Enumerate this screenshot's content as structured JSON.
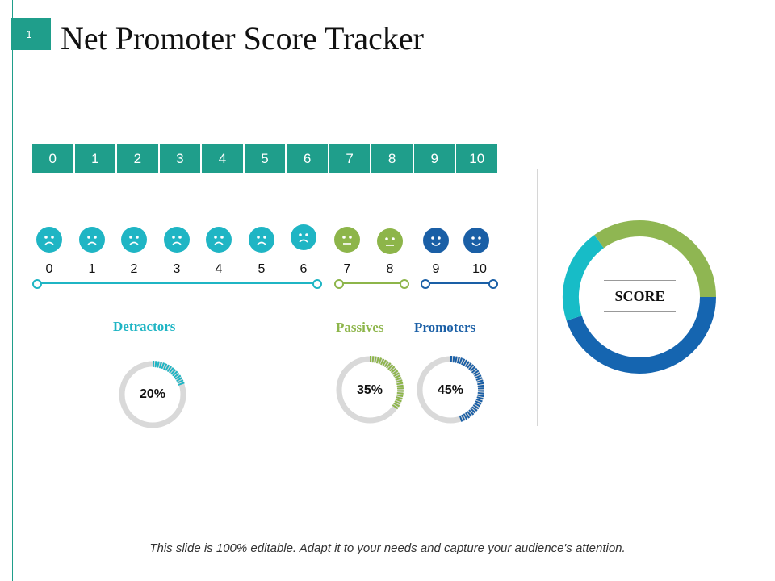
{
  "slide": {
    "number": "1",
    "title": "Net Promoter Score Tracker"
  },
  "scale": [
    "0",
    "1",
    "2",
    "3",
    "4",
    "5",
    "6",
    "7",
    "8",
    "9",
    "10"
  ],
  "faces": [
    {
      "num": "0",
      "mood": "sad",
      "group": "detractor"
    },
    {
      "num": "1",
      "mood": "sad",
      "group": "detractor"
    },
    {
      "num": "2",
      "mood": "sad",
      "group": "detractor"
    },
    {
      "num": "3",
      "mood": "sad",
      "group": "detractor"
    },
    {
      "num": "4",
      "mood": "sad",
      "group": "detractor"
    },
    {
      "num": "5",
      "mood": "sad",
      "group": "detractor"
    },
    {
      "num": "6",
      "mood": "sad",
      "group": "detractor"
    },
    {
      "num": "7",
      "mood": "neutral",
      "group": "passive"
    },
    {
      "num": "8",
      "mood": "neutral",
      "group": "passive"
    },
    {
      "num": "9",
      "mood": "happy",
      "group": "promoter"
    },
    {
      "num": "10",
      "mood": "happy",
      "group": "promoter"
    }
  ],
  "groups": {
    "detractors": {
      "label": "Detractors",
      "percent": "20%",
      "value": 20,
      "color": "#1fb5c4"
    },
    "passives": {
      "label": "Passives",
      "percent": "35%",
      "value": 35,
      "color": "#8db54a"
    },
    "promoters": {
      "label": "Promoters",
      "percent": "45%",
      "value": 45,
      "color": "#1a5fa6"
    }
  },
  "score": {
    "label": "SCORE"
  },
  "chart_data": {
    "type": "pie",
    "categories": [
      "Detractors",
      "Passives",
      "Promoters"
    ],
    "values": [
      20,
      35,
      45
    ],
    "colors": [
      "#17bcc7",
      "#8fb652",
      "#1565b0"
    ]
  },
  "footer": "This slide is 100% editable. Adapt it to your needs and capture your audience's attention."
}
